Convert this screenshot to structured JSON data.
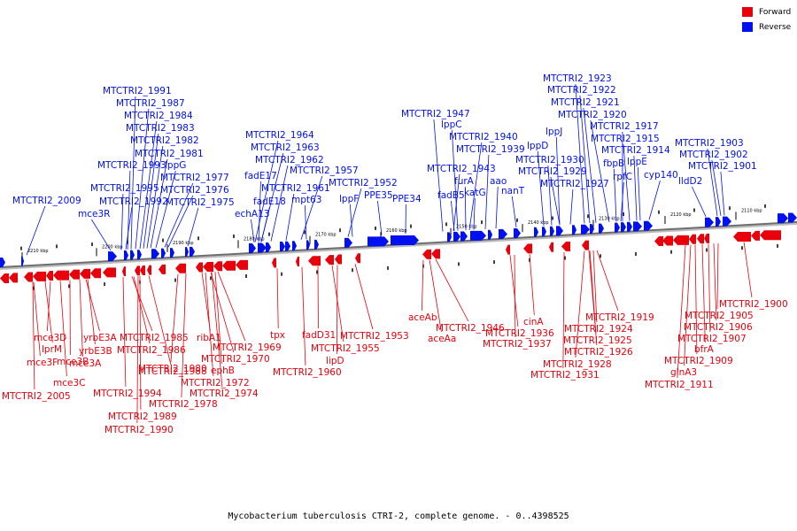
{
  "legend": {
    "forward_label": "Forward",
    "reverse_label": "Reverse",
    "forward_color": "#e8000b",
    "reverse_color": "#0010f0"
  },
  "caption": "Mycobacterium tuberculosis CTRI-2, complete genome. - 0..4398525",
  "ticks": [
    "2210 kbp",
    "2200 kbp",
    "2190 kbp",
    "2180 kbp",
    "2170 kbp",
    "2160 kbp",
    "2150 kbp",
    "2140 kbp",
    "2130 kbp",
    "2120 kbp",
    "2110 kbp"
  ],
  "reverse_genes": [
    "MTCTRI2_2009",
    "mce3R",
    "MTCTRI2_1991",
    "MTCTRI2_1987",
    "MTCTRI2_1984",
    "MTCTRI2_1983",
    "MTCTRI2_1982",
    "MTCTRI2_1981",
    "MTCTRI2_1993",
    "lppG",
    "MTCTRI2_1995",
    "MTCTRI2_1977",
    "MTCTRI2_1992",
    "MTCTRI2_1976",
    "MTCTRI2_1975",
    "MTCTRI2_1964",
    "MTCTRI2_1963",
    "MTCTRI2_1962",
    "fadE17",
    "MTCTRI2_1957",
    "fadE18",
    "MTCTRI2_1961",
    "echA13",
    "mpt63",
    "MTCTRI2_1952",
    "lppF",
    "PPE35",
    "PPE34",
    "MTCTRI2_1947",
    "lppC",
    "MTCTRI2_1940",
    "MTCTRI2_1939",
    "MTCTRI2_1943",
    "fadB5",
    "furA",
    "katG",
    "aao",
    "nanT",
    "MTCTRI2_1923",
    "MTCTRI2_1922",
    "MTCTRI2_1921",
    "MTCTRI2_1920",
    "lppJ",
    "MTCTRI2_1917",
    "MTCTRI2_1915",
    "lppD",
    "MTCTRI2_1914",
    "MTCTRI2_1930",
    "fbpB",
    "lppE",
    "MTCTRI2_1929",
    "rpfC",
    "cyp140",
    "MTCTRI2_1927",
    "MTCTRI2_1903",
    "MTCTRI2_1902",
    "MTCTRI2_1901",
    "lldD2"
  ],
  "forward_genes": [
    "mce3D",
    "lprM",
    "mce3F",
    "yrbE3A",
    "mce3A",
    "yrbE3B",
    "mce3B",
    "mce3C",
    "MTCTRI2_2005",
    "MTCTRI2_1985",
    "MTCTRI2_1986",
    "MTCTRI2_1988",
    "MTCTRI2_1994",
    "MTCTRI2_1989",
    "MTCTRI2_1990",
    "ribA1",
    "MTCTRI2_1969",
    "MTCTRI2_1970",
    "ephB",
    "MTCTRI2_1980",
    "MTCTRI2_1972",
    "MTCTRI2_1974",
    "MTCTRI2_1978",
    "tpx",
    "MTCTRI2_1960",
    "fadD31",
    "MTCTRI2_1953",
    "MTCTRI2_1955",
    "lipD",
    "aceAb",
    "MTCTRI2_1946",
    "aceAa",
    "MTCTRI2_1936",
    "MTCTRI2_1937",
    "cinA",
    "MTCTRI2_1919",
    "MTCTRI2_1924",
    "MTCTRI2_1925",
    "MTCTRI2_1926",
    "MTCTRI2_1928",
    "MTCTRI2_1931",
    "MTCTRI2_1900",
    "MTCTRI2_1905",
    "MTCTRI2_1906",
    "MTCTRI2_1907",
    "bfrA",
    "MTCTRI2_1909",
    "glnA3",
    "MTCTRI2_1911"
  ]
}
